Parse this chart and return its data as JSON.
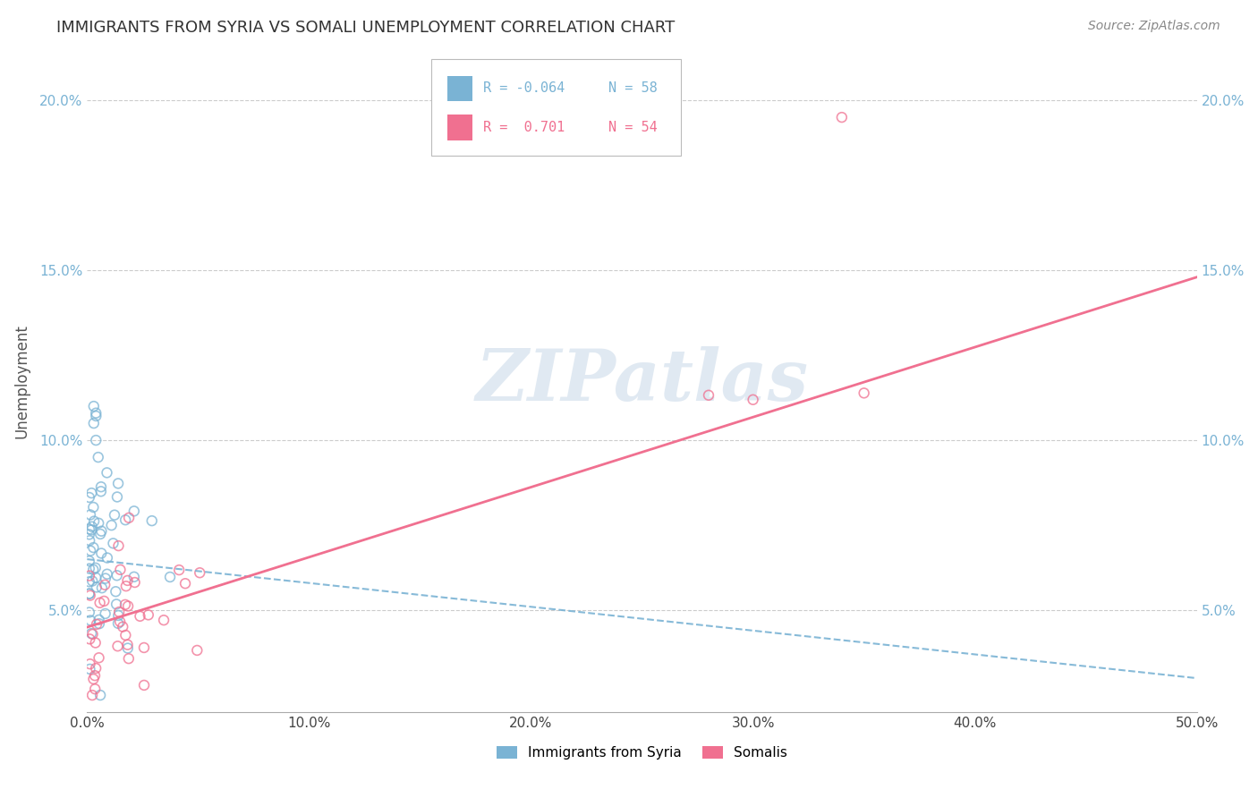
{
  "title": "IMMIGRANTS FROM SYRIA VS SOMALI UNEMPLOYMENT CORRELATION CHART",
  "source": "Source: ZipAtlas.com",
  "ylabel": "Unemployment",
  "xlim": [
    0.0,
    0.5
  ],
  "ylim": [
    0.02,
    0.215
  ],
  "xticks": [
    0.0,
    0.1,
    0.2,
    0.3,
    0.4,
    0.5
  ],
  "xticklabels": [
    "0.0%",
    "10.0%",
    "20.0%",
    "30.0%",
    "40.0%",
    "50.0%"
  ],
  "yticks": [
    0.05,
    0.1,
    0.15,
    0.2
  ],
  "yticklabels": [
    "5.0%",
    "10.0%",
    "15.0%",
    "20.0%"
  ],
  "color_blue": "#7ab3d4",
  "color_pink": "#f07090",
  "watermark": "ZIPatlas",
  "syria_line_x": [
    0.0,
    0.5
  ],
  "syria_line_y": [
    0.065,
    0.03
  ],
  "somali_line_x": [
    0.0,
    0.5
  ],
  "somali_line_y": [
    0.045,
    0.148
  ]
}
